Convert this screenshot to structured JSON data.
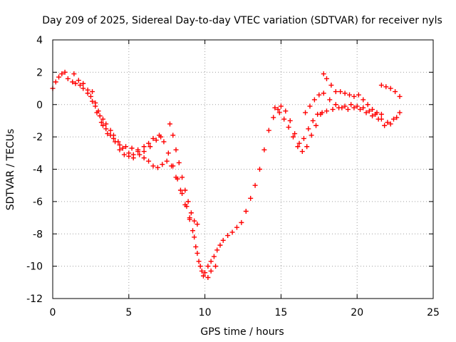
{
  "chart_data": {
    "type": "scatter",
    "title": "Day 209 of 2025, Sidereal Day-to-day VTEC variation (SDTVAR) for receiver nyls",
    "xlabel": "GPS time / hours",
    "ylabel": "SDTVAR / TECUs",
    "xlim": [
      0,
      25
    ],
    "ylim": [
      -12,
      4
    ],
    "xticks": [
      0,
      5,
      10,
      15,
      20,
      25
    ],
    "yticks": [
      4,
      2,
      0,
      -2,
      -4,
      -6,
      -8,
      -10,
      -12
    ],
    "grid": true,
    "legend": "none",
    "marker": "plus",
    "color": "#ff0000",
    "series": [
      {
        "points": [
          [
            0.0,
            1.0
          ],
          [
            0.2,
            1.4
          ],
          [
            0.4,
            1.7
          ],
          [
            0.6,
            1.9
          ],
          [
            0.8,
            2.0
          ],
          [
            1.0,
            1.6
          ],
          [
            1.3,
            1.4
          ],
          [
            1.5,
            1.3
          ],
          [
            1.8,
            1.2
          ],
          [
            2.0,
            1.0
          ],
          [
            2.3,
            0.7
          ],
          [
            2.5,
            0.5
          ],
          [
            2.8,
            -0.1
          ],
          [
            3.0,
            -0.4
          ],
          [
            3.3,
            -0.9
          ],
          [
            3.5,
            -1.2
          ],
          [
            3.8,
            -1.6
          ],
          [
            4.0,
            -1.9
          ],
          [
            4.3,
            -2.3
          ],
          [
            4.6,
            -2.7
          ],
          [
            5.0,
            -3.0
          ],
          [
            5.3,
            -3.1
          ],
          [
            5.6,
            -2.9
          ],
          [
            6.0,
            -2.6
          ],
          [
            6.3,
            -2.4
          ],
          [
            6.6,
            -2.1
          ],
          [
            7.0,
            -1.9
          ],
          [
            7.3,
            -2.3
          ],
          [
            7.6,
            -3.0
          ],
          [
            7.9,
            -3.8
          ],
          [
            8.2,
            -4.6
          ],
          [
            8.5,
            -5.5
          ],
          [
            8.8,
            -6.3
          ],
          [
            9.0,
            -7.0
          ],
          [
            9.2,
            -7.8
          ],
          [
            9.4,
            -8.8
          ],
          [
            9.6,
            -9.7
          ],
          [
            9.8,
            -10.3
          ],
          [
            10.0,
            -10.4
          ],
          [
            10.2,
            -10.0
          ],
          [
            10.4,
            -9.7
          ],
          [
            10.6,
            -9.4
          ],
          [
            10.8,
            -9.0
          ],
          [
            11.0,
            -8.7
          ],
          [
            11.2,
            -8.4
          ],
          [
            11.5,
            -8.1
          ],
          [
            11.8,
            -7.9
          ],
          [
            12.1,
            -7.6
          ],
          [
            12.4,
            -7.3
          ],
          [
            12.7,
            -6.6
          ],
          [
            13.0,
            -5.8
          ],
          [
            13.3,
            -5.0
          ],
          [
            13.6,
            -4.0
          ],
          [
            13.9,
            -2.8
          ],
          [
            14.2,
            -1.6
          ],
          [
            14.5,
            -0.8
          ],
          [
            14.8,
            -0.3
          ],
          [
            15.0,
            -0.1
          ],
          [
            15.3,
            -0.4
          ],
          [
            15.6,
            -1.0
          ],
          [
            15.9,
            -1.8
          ],
          [
            16.2,
            -2.4
          ],
          [
            16.5,
            -2.1
          ],
          [
            16.8,
            -1.5
          ],
          [
            17.1,
            -1.0
          ],
          [
            17.4,
            -0.6
          ],
          [
            17.7,
            -0.5
          ],
          [
            18.0,
            -0.4
          ],
          [
            18.4,
            -0.3
          ],
          [
            18.8,
            -0.2
          ],
          [
            19.2,
            -0.1
          ],
          [
            19.6,
            0.0
          ],
          [
            20.0,
            -0.1
          ],
          [
            20.4,
            -0.2
          ],
          [
            20.8,
            -0.4
          ],
          [
            21.2,
            -0.6
          ],
          [
            21.6,
            -0.9
          ],
          [
            22.0,
            -1.1
          ],
          [
            22.4,
            -0.9
          ],
          [
            22.8,
            -0.5
          ]
        ]
      },
      {
        "points": [
          [
            1.4,
            1.9
          ],
          [
            1.7,
            1.5
          ],
          [
            2.0,
            1.3
          ],
          [
            2.3,
            0.9
          ],
          [
            2.6,
            0.2
          ],
          [
            2.9,
            -0.5
          ],
          [
            3.2,
            -1.1
          ],
          [
            3.5,
            -1.5
          ],
          [
            3.8,
            -1.9
          ],
          [
            4.1,
            -2.3
          ],
          [
            4.4,
            -2.8
          ],
          [
            4.7,
            -3.1
          ],
          [
            5.0,
            -3.2
          ],
          [
            5.3,
            -3.3
          ],
          [
            5.7,
            -3.1
          ],
          [
            6.0,
            -3.3
          ],
          [
            6.3,
            -3.5
          ],
          [
            6.6,
            -3.8
          ],
          [
            6.9,
            -3.9
          ],
          [
            7.2,
            -3.7
          ],
          [
            7.5,
            -3.5
          ],
          [
            7.8,
            -3.8
          ],
          [
            8.1,
            -4.5
          ],
          [
            8.4,
            -5.3
          ],
          [
            8.7,
            -6.2
          ],
          [
            9.0,
            -7.1
          ],
          [
            9.3,
            -8.2
          ],
          [
            9.5,
            -9.2
          ],
          [
            9.7,
            -10.0
          ],
          [
            9.9,
            -10.6
          ],
          [
            10.2,
            -10.7
          ],
          [
            10.4,
            -10.3
          ],
          [
            10.7,
            -10.0
          ]
        ]
      },
      {
        "points": [
          [
            7.7,
            -1.2
          ],
          [
            7.9,
            -1.9
          ],
          [
            8.1,
            -2.8
          ],
          [
            8.3,
            -3.6
          ],
          [
            8.5,
            -4.5
          ],
          [
            8.7,
            -5.3
          ],
          [
            8.9,
            -6.0
          ],
          [
            9.1,
            -6.7
          ],
          [
            9.3,
            -7.2
          ],
          [
            9.5,
            -7.4
          ]
        ]
      },
      {
        "points": [
          [
            14.6,
            -0.2
          ],
          [
            14.9,
            -0.5
          ],
          [
            15.2,
            -0.9
          ],
          [
            15.5,
            -1.4
          ],
          [
            15.8,
            -2.0
          ],
          [
            16.1,
            -2.6
          ],
          [
            16.4,
            -2.9
          ],
          [
            16.7,
            -2.6
          ],
          [
            17.0,
            -1.9
          ],
          [
            17.3,
            -1.3
          ],
          [
            17.6,
            -0.6
          ],
          [
            17.8,
            1.9
          ],
          [
            18.0,
            1.6
          ],
          [
            18.3,
            1.2
          ],
          [
            18.6,
            0.8
          ],
          [
            18.9,
            0.8
          ],
          [
            19.2,
            0.7
          ],
          [
            19.5,
            0.6
          ],
          [
            19.8,
            0.5
          ],
          [
            20.1,
            0.6
          ],
          [
            20.4,
            0.3
          ],
          [
            20.7,
            0.0
          ],
          [
            21.0,
            -0.3
          ],
          [
            21.3,
            -0.5
          ],
          [
            21.6,
            -0.6
          ],
          [
            21.6,
            1.2
          ],
          [
            21.9,
            1.1
          ],
          [
            22.2,
            1.0
          ],
          [
            22.5,
            0.8
          ],
          [
            22.8,
            0.5
          ]
        ]
      },
      {
        "points": [
          [
            16.6,
            -0.5
          ],
          [
            16.9,
            -0.1
          ],
          [
            17.2,
            0.3
          ],
          [
            17.5,
            0.6
          ],
          [
            17.8,
            0.7
          ],
          [
            18.2,
            0.3
          ],
          [
            18.6,
            0.0
          ],
          [
            19.0,
            -0.2
          ],
          [
            19.4,
            -0.3
          ],
          [
            19.8,
            -0.2
          ],
          [
            20.2,
            -0.3
          ],
          [
            20.6,
            -0.5
          ],
          [
            21.0,
            -0.7
          ],
          [
            21.4,
            -0.9
          ],
          [
            21.8,
            -1.3
          ],
          [
            22.2,
            -1.2
          ],
          [
            22.6,
            -0.8
          ]
        ]
      },
      {
        "points": [
          [
            2.6,
            0.8
          ],
          [
            2.8,
            0.1
          ],
          [
            3.1,
            -0.7
          ],
          [
            3.3,
            -1.3
          ],
          [
            3.6,
            -1.8
          ],
          [
            4.0,
            -2.1
          ],
          [
            4.4,
            -2.5
          ],
          [
            4.8,
            -2.6
          ],
          [
            5.2,
            -2.7
          ],
          [
            5.6,
            -2.8
          ],
          [
            6.0,
            -2.9
          ],
          [
            6.4,
            -2.6
          ],
          [
            6.8,
            -2.2
          ],
          [
            7.1,
            -2.0
          ]
        ]
      }
    ]
  }
}
